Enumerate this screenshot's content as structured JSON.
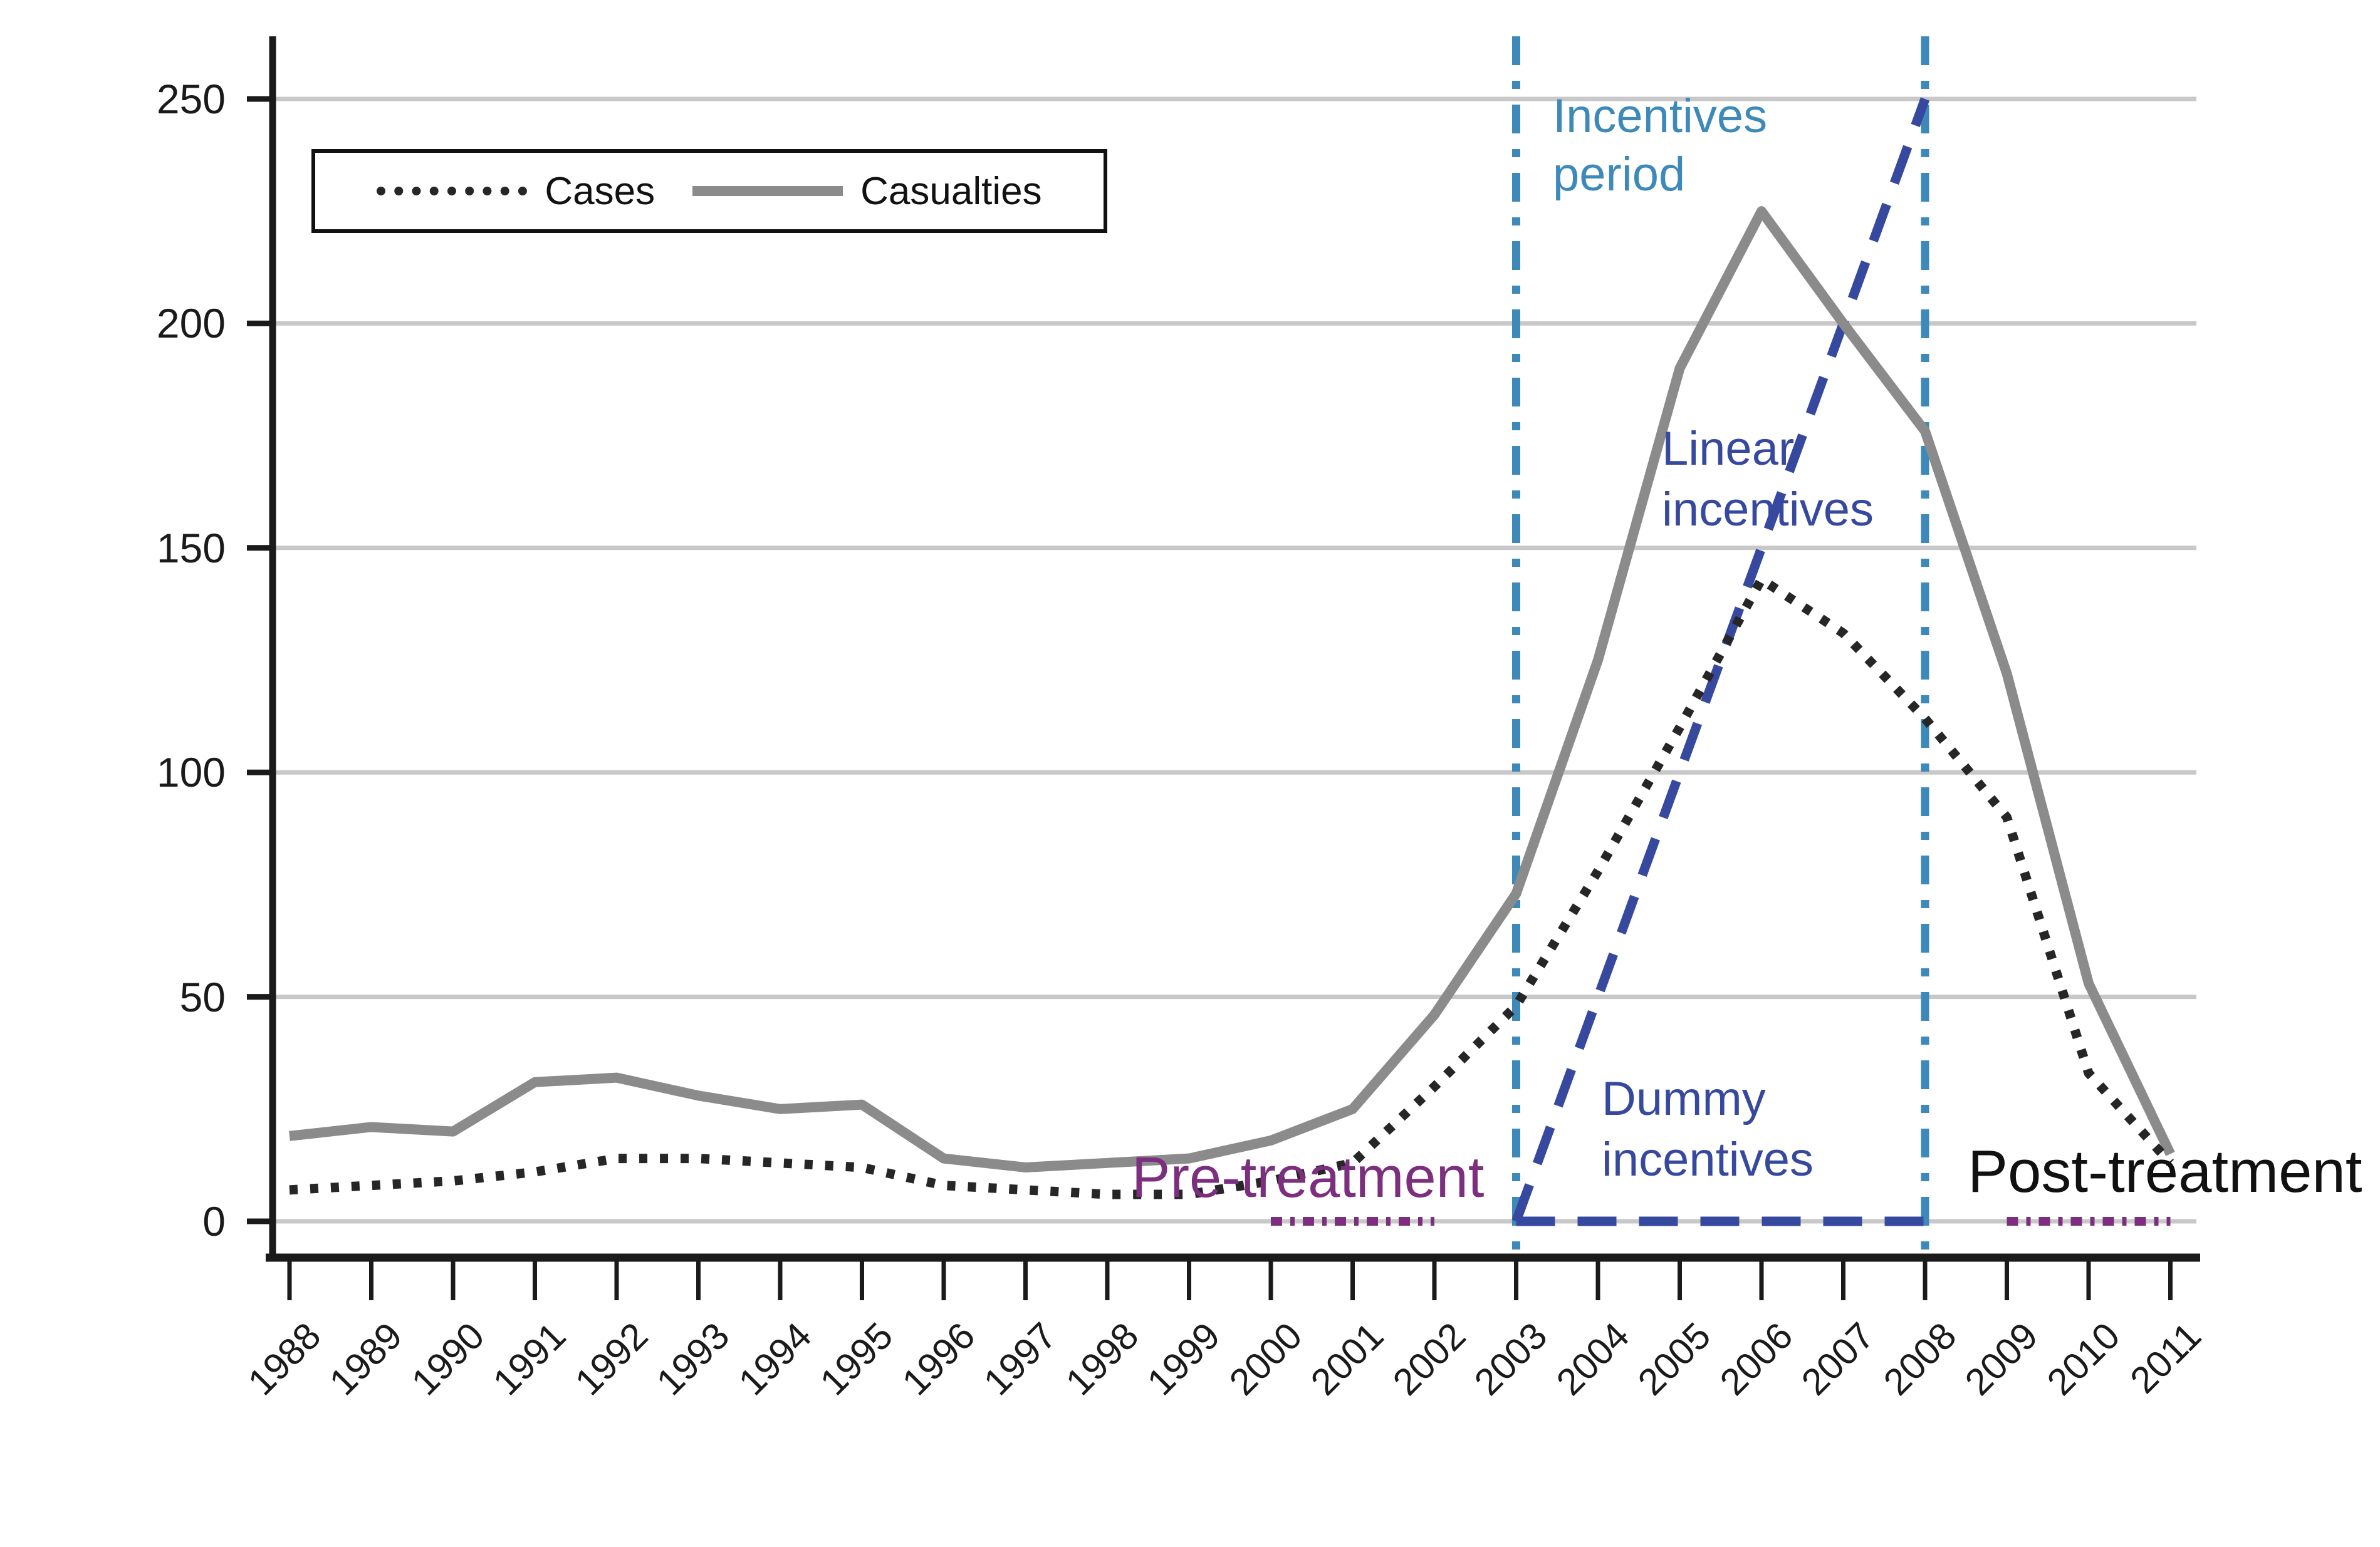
{
  "chart_data": {
    "type": "line",
    "title": "",
    "xlabel": "",
    "ylabel": "",
    "x": [
      1988,
      1989,
      1990,
      1991,
      1992,
      1993,
      1994,
      1995,
      1996,
      1997,
      1998,
      1999,
      2000,
      2001,
      2002,
      2003,
      2004,
      2005,
      2006,
      2007,
      2008,
      2009,
      2010,
      2011
    ],
    "ylim": [
      0,
      250
    ],
    "yticks": [
      0,
      50,
      100,
      150,
      200,
      250
    ],
    "grid": true,
    "legend_position": "top-left",
    "series": [
      {
        "name": "Casualties",
        "color": "#8b8b8b",
        "style": "solid",
        "width": 16,
        "values": [
          19,
          21,
          20,
          31,
          32,
          28,
          25,
          26,
          14,
          12,
          13,
          14,
          18,
          25,
          46,
          73,
          125,
          190,
          225,
          200,
          176,
          122,
          53,
          15
        ]
      },
      {
        "name": "Cases",
        "color": "#262626",
        "style": "dotted",
        "width": 15,
        "values": [
          7,
          8,
          9,
          11,
          14,
          14,
          13,
          12,
          8,
          7,
          6,
          6,
          9,
          13,
          30,
          48,
          78,
          110,
          143,
          131,
          112,
          90,
          33,
          13
        ]
      },
      {
        "name": "Linear incentives",
        "color": "#36499e",
        "style": "dashed",
        "width": 15,
        "x": [
          2003,
          2008
        ],
        "values": [
          0,
          250
        ]
      },
      {
        "name": "Dummy incentives",
        "color": "#36499e",
        "style": "dashed",
        "width": 15,
        "x": [
          2003,
          2008
        ],
        "values": [
          0,
          0
        ]
      },
      {
        "name": "Pre-treatment period marker",
        "color": "#7c2e7f",
        "style": "dashdot",
        "width": 14,
        "x": [
          2000,
          2002
        ],
        "values": [
          0,
          0
        ]
      },
      {
        "name": "Post-treatment period marker",
        "color": "#7c2e7f",
        "style": "dashdot",
        "width": 14,
        "x": [
          2009,
          2011
        ],
        "values": [
          0,
          0
        ]
      }
    ],
    "vlines": [
      {
        "x": 2003,
        "color": "#3d89ba",
        "style": "dashdot"
      },
      {
        "x": 2008,
        "color": "#3d89ba",
        "style": "dashdot"
      }
    ]
  },
  "legend": {
    "cases_label": "Cases",
    "casualties_label": "Casualties"
  },
  "annotations": {
    "incentives_period": "Incentives\nperiod",
    "linear_incentives": "Linear\nincentives",
    "dummy_incentives": "Dummy\nincentives",
    "pre_treatment": "Pre-treatment",
    "post_treatment": "Post-treatment"
  },
  "colors": {
    "casualties_line": "#8b8b8b",
    "cases_line": "#262626",
    "incentives_blue": "#3d89ba",
    "dark_blue": "#36499e",
    "purple": "#7c2e7f",
    "gridline": "#c8c8c8",
    "axis": "#1a1a1a"
  }
}
